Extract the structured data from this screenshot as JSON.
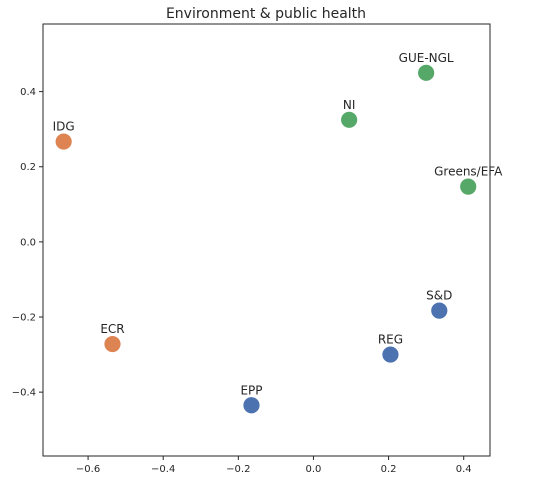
{
  "chart_data": {
    "type": "scatter",
    "title": "Environment & public health",
    "xlabel": "",
    "ylabel": "",
    "xlim": [
      -0.72,
      0.47
    ],
    "ylim": [
      -0.57,
      0.58
    ],
    "xticks": [
      -0.6,
      -0.4,
      -0.2,
      0.0,
      0.2,
      0.4
    ],
    "xtick_labels": [
      "−0.6",
      "−0.4",
      "−0.2",
      "0.0",
      "0.2",
      "0.4"
    ],
    "yticks": [
      -0.4,
      -0.2,
      0.0,
      0.2,
      0.4
    ],
    "ytick_labels": [
      "−0.4",
      "−0.2",
      "0.0",
      "0.2",
      "0.4"
    ],
    "grid": false,
    "points": [
      {
        "label": "GUE-NGL",
        "x": 0.3,
        "y": 0.45,
        "color": "#55a868"
      },
      {
        "label": "NI",
        "x": 0.095,
        "y": 0.325,
        "color": "#55a868"
      },
      {
        "label": "IDG",
        "x": -0.665,
        "y": 0.267,
        "color": "#dd8452"
      },
      {
        "label": "Greens/EFA",
        "x": 0.412,
        "y": 0.147,
        "color": "#55a868"
      },
      {
        "label": "S&D",
        "x": 0.335,
        "y": -0.183,
        "color": "#4c72b0"
      },
      {
        "label": "REG",
        "x": 0.205,
        "y": -0.3,
        "color": "#4c72b0"
      },
      {
        "label": "ECR",
        "x": -0.535,
        "y": -0.272,
        "color": "#dd8452"
      },
      {
        "label": "EPP",
        "x": -0.165,
        "y": -0.435,
        "color": "#4c72b0"
      }
    ]
  }
}
